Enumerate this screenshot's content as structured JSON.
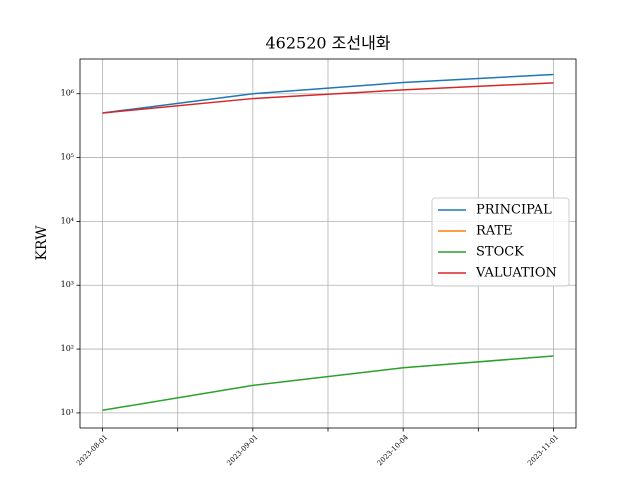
{
  "chart_data": {
    "type": "line",
    "title": "462520 조선내화",
    "y_label": "KRW",
    "categories": [
      "2023-08-01",
      "2023-09-01",
      "2023-10-04",
      "2023-11-01"
    ],
    "series": [
      {
        "name": "PRINCIPAL",
        "color": "#1f77b4",
        "values": [
          500000,
          1000000,
          1500000,
          2000000
        ]
      },
      {
        "name": "RATE",
        "color": "#ff7f0e",
        "values": [
          null,
          null,
          null,
          null
        ]
      },
      {
        "name": "STOCK",
        "color": "#2ca02c",
        "values": [
          11,
          27,
          51,
          78
        ]
      },
      {
        "name": "VALUATION",
        "color": "#d62728",
        "values": [
          500000,
          840000,
          1150000,
          1480000
        ]
      }
    ],
    "y_scale": "log",
    "ylim": [
      5.8,
      3500000
    ],
    "yticks": [
      {
        "value": 10,
        "label": "10¹"
      },
      {
        "value": 100,
        "label": "10²"
      },
      {
        "value": 1000,
        "label": "10³"
      },
      {
        "value": 10000,
        "label": "10⁴"
      },
      {
        "value": 100000,
        "label": "10⁵"
      },
      {
        "value": 1000000,
        "label": "10⁶"
      }
    ],
    "grid": true,
    "legend_position": "center right"
  }
}
